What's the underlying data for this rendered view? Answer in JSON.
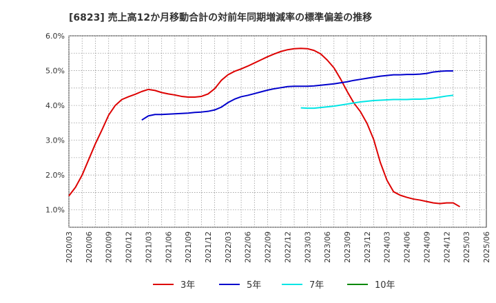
{
  "chart_data": {
    "type": "line",
    "title": "[6823]  売上高12か月移動合計の対前年同期増減率の標準偏差の推移",
    "xlabel": "",
    "ylabel": "",
    "ylim": [
      0.5,
      6.0
    ],
    "yticks": [
      1.0,
      2.0,
      3.0,
      4.0,
      5.0,
      6.0
    ],
    "ytick_labels": [
      "1.0%",
      "2.0%",
      "3.0%",
      "4.0%",
      "5.0%",
      "6.0%"
    ],
    "xticks": [
      "2020/03",
      "2020/06",
      "2020/09",
      "2020/12",
      "2021/03",
      "2021/06",
      "2021/09",
      "2021/12",
      "2022/03",
      "2022/06",
      "2022/09",
      "2022/12",
      "2023/03",
      "2023/06",
      "2023/09",
      "2023/12",
      "2024/03",
      "2024/06",
      "2024/09",
      "2024/12",
      "2025/03",
      "2025/06"
    ],
    "grid": true,
    "legend_position": "bottom",
    "series": [
      {
        "name": "3年",
        "color": "#dd0000",
        "start": "2020/03",
        "values": [
          1.4,
          1.65,
          2.0,
          2.45,
          2.9,
          3.3,
          3.72,
          4.0,
          4.17,
          4.25,
          4.32,
          4.4,
          4.46,
          4.43,
          4.37,
          4.33,
          4.3,
          4.26,
          4.24,
          4.24,
          4.26,
          4.33,
          4.48,
          4.72,
          4.88,
          4.98,
          5.05,
          5.13,
          5.22,
          5.31,
          5.4,
          5.48,
          5.55,
          5.6,
          5.63,
          5.64,
          5.63,
          5.58,
          5.48,
          5.3,
          5.08,
          4.76,
          4.4,
          4.07,
          3.82,
          3.48,
          3.02,
          2.36,
          1.85,
          1.52,
          1.42,
          1.36,
          1.31,
          1.28,
          1.24,
          1.2,
          1.18,
          1.2,
          1.2,
          1.09
        ]
      },
      {
        "name": "5年",
        "color": "#0000cc",
        "start": "2021/02",
        "values": [
          3.58,
          3.7,
          3.74,
          3.74,
          3.75,
          3.76,
          3.77,
          3.78,
          3.8,
          3.81,
          3.83,
          3.87,
          3.95,
          4.08,
          4.18,
          4.25,
          4.29,
          4.34,
          4.39,
          4.44,
          4.48,
          4.51,
          4.54,
          4.55,
          4.55,
          4.55,
          4.56,
          4.58,
          4.6,
          4.62,
          4.65,
          4.68,
          4.72,
          4.75,
          4.78,
          4.81,
          4.84,
          4.86,
          4.88,
          4.88,
          4.89,
          4.89,
          4.9,
          4.92,
          4.96,
          4.98,
          4.99,
          4.99
        ]
      },
      {
        "name": "7年",
        "color": "#00e5e5",
        "start": "2023/02",
        "values": [
          3.93,
          3.92,
          3.92,
          3.94,
          3.96,
          3.98,
          4.01,
          4.04,
          4.07,
          4.1,
          4.12,
          4.14,
          4.15,
          4.16,
          4.17,
          4.17,
          4.17,
          4.18,
          4.18,
          4.19,
          4.21,
          4.24,
          4.27,
          4.29
        ]
      },
      {
        "name": "10年",
        "color": "#008800",
        "start": "2025/03",
        "values": []
      }
    ]
  }
}
